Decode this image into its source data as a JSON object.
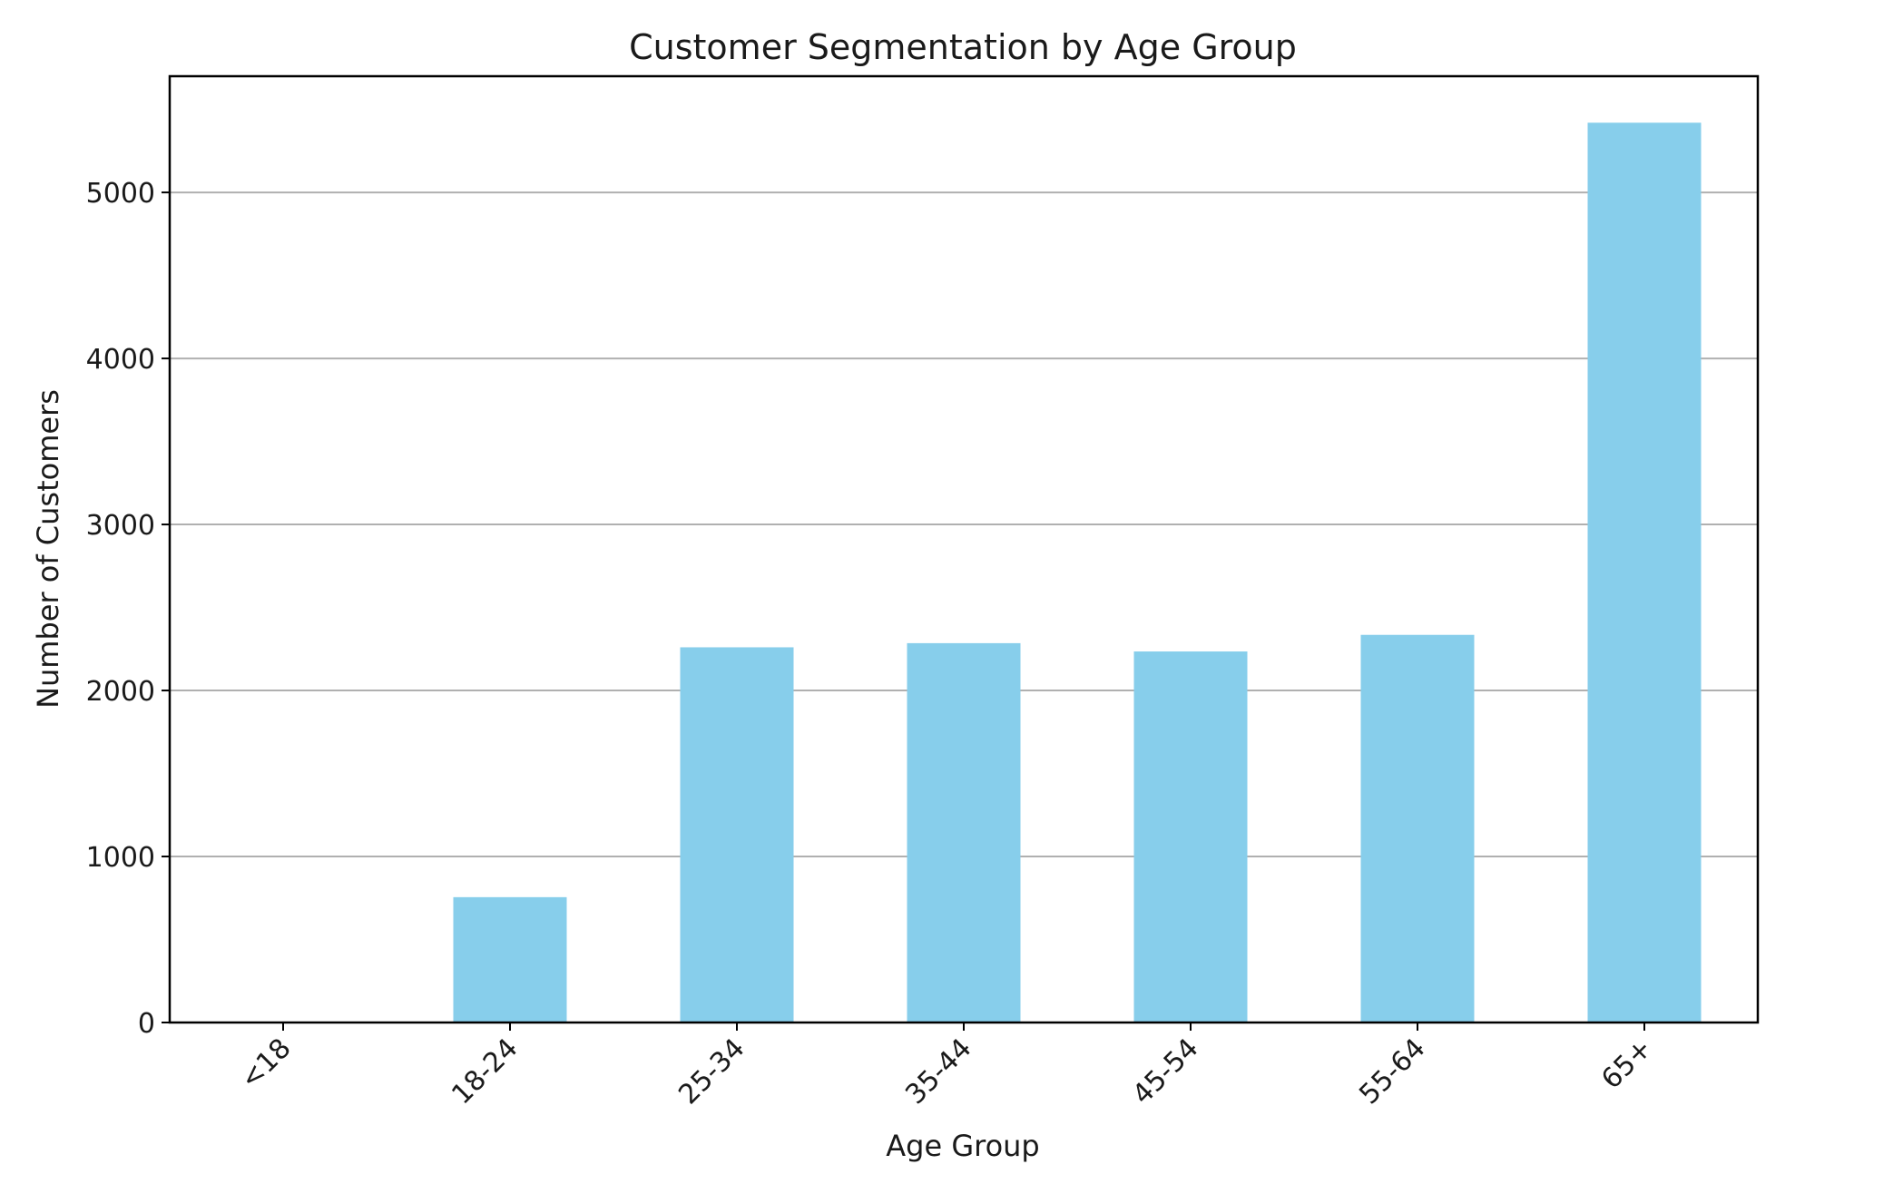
{
  "chart_data": {
    "type": "bar",
    "title": "Customer Segmentation by Age Group",
    "xlabel": "Age Group",
    "ylabel": "Number of Customers",
    "categories": [
      "<18",
      "18-24",
      "25-34",
      "35-44",
      "45-54",
      "55-64",
      "65+"
    ],
    "values": [
      0,
      755,
      2260,
      2285,
      2235,
      2335,
      5420
    ],
    "ylim": [
      0,
      5700
    ],
    "yticks": [
      0,
      1000,
      2000,
      3000,
      4000,
      5000
    ],
    "grid": "horizontal",
    "bar_color": "#87ceeb",
    "xtick_rotation": 45
  }
}
